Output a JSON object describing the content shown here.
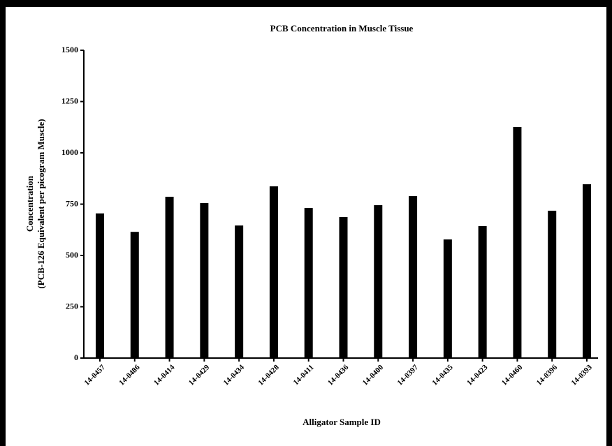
{
  "chart_data": {
    "type": "bar",
    "title": "PCB Concentration in Muscle Tissue",
    "xlabel": "Alligator  Sample  ID",
    "ylabel": [
      "Concentration",
      "(PCB-126 Equivalent per picogram Muscle)"
    ],
    "categories": [
      "14-0457",
      "14-0486",
      "14-0414",
      "14-0429",
      "14-0434",
      "14-0428",
      "14-0411",
      "14-0436",
      "14-0400",
      "14-0397",
      "14-0435",
      "14-0423",
      "14-0460",
      "14-0396",
      "14-0393"
    ],
    "values": [
      705,
      615,
      786,
      755,
      646,
      837,
      731,
      687,
      745,
      789,
      578,
      643,
      1126,
      718,
      847
    ],
    "color": "#000000",
    "ylim": [
      0,
      1500
    ],
    "yticks": [
      0,
      250,
      500,
      750,
      1000,
      1250,
      1500
    ],
    "grid": false
  }
}
